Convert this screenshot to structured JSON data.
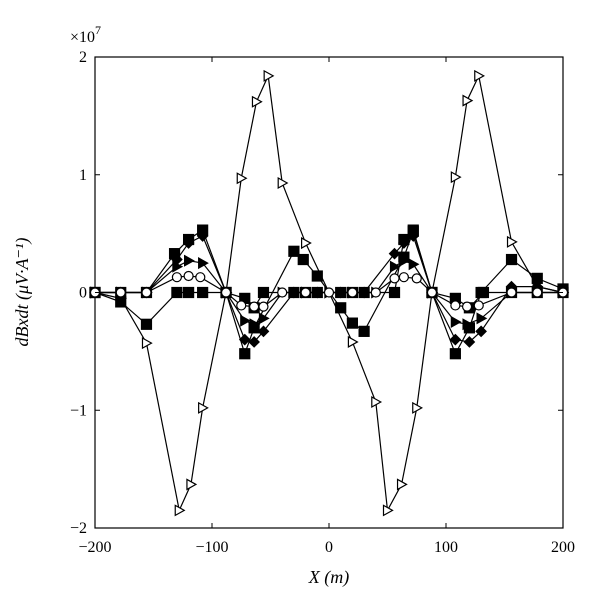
{
  "chart_data": {
    "type": "line",
    "xlabel": "X (m)",
    "ylabel": "dBxdt (μV·A⁻¹)",
    "exponent_label": "×10",
    "exponent_power": "7",
    "xlim": [
      -200,
      200
    ],
    "ylim": [
      -2,
      2
    ],
    "xticks": [
      -200,
      -100,
      0,
      100,
      200
    ],
    "xtick_labels": [
      "−200",
      "−100",
      "0",
      "100",
      "200"
    ],
    "yticks": [
      -2,
      -1,
      0,
      1,
      2
    ],
    "ytick_labels": [
      "−2",
      "−1",
      "0",
      "1",
      "2"
    ],
    "grid": false,
    "legend": "none",
    "units_note": "y values in units of 10^7",
    "series": [
      {
        "marker": "triangle-right-open",
        "x": [
          -200,
          -178,
          -156,
          -128,
          -118,
          -108,
          -88,
          -75,
          -62,
          -52,
          -40,
          -20,
          0,
          20,
          40,
          50,
          62,
          75,
          88,
          108,
          118,
          128,
          156,
          178,
          200
        ],
        "y": [
          0.0,
          -0.05,
          -0.43,
          -1.85,
          -1.63,
          -0.98,
          0.0,
          0.97,
          1.62,
          1.84,
          0.93,
          0.42,
          0.0,
          -0.42,
          -0.93,
          -1.85,
          -1.63,
          -0.98,
          0.0,
          0.98,
          1.63,
          1.84,
          0.43,
          0.05,
          0.0
        ]
      },
      {
        "marker": "square-filled",
        "x": [
          -200,
          -178,
          -156,
          -130,
          -120,
          -108,
          -88,
          -72,
          -64,
          -30,
          -22,
          -10,
          10,
          20,
          30,
          64,
          72,
          88,
          108,
          120,
          130,
          156,
          178,
          200
        ],
        "y": [
          0.0,
          -0.08,
          -0.27,
          0.0,
          0.0,
          0.0,
          0.0,
          -0.52,
          -0.3,
          0.35,
          0.28,
          0.14,
          -0.13,
          -0.26,
          -0.33,
          0.3,
          0.52,
          0.0,
          -0.52,
          -0.3,
          0.0,
          0.28,
          0.12,
          0.03
        ]
      },
      {
        "marker": "square-filled",
        "x": [
          -200,
          -178,
          -156,
          -132,
          -120,
          -108,
          -88,
          -72,
          -64,
          -56,
          -30,
          -20,
          -10,
          10,
          20,
          30,
          56,
          64,
          72,
          88,
          108,
          120,
          132,
          156,
          178,
          200
        ],
        "y": [
          0.0,
          0.0,
          0.0,
          0.33,
          0.45,
          0.53,
          0.0,
          -0.05,
          -0.13,
          0.0,
          0.0,
          0.0,
          0.0,
          0.0,
          0.0,
          0.0,
          0.0,
          0.45,
          0.53,
          0.0,
          -0.05,
          -0.13,
          0.0,
          0.0,
          0.0,
          0.0
        ]
      },
      {
        "marker": "diamond-filled",
        "x": [
          -200,
          -178,
          -156,
          -130,
          -120,
          -108,
          -88,
          -72,
          -64,
          -56,
          -30,
          -10,
          10,
          30,
          56,
          64,
          72,
          88,
          108,
          120,
          130,
          156,
          178,
          200
        ],
        "y": [
          0.0,
          0.0,
          0.0,
          0.28,
          0.42,
          0.48,
          0.0,
          -0.4,
          -0.42,
          -0.33,
          0.0,
          0.0,
          0.0,
          0.0,
          0.33,
          0.42,
          0.48,
          0.0,
          -0.4,
          -0.42,
          -0.33,
          0.05,
          0.05,
          0.0
        ]
      },
      {
        "marker": "triangle-right-filled",
        "x": [
          -200,
          -178,
          -156,
          -130,
          -120,
          -108,
          -88,
          -72,
          -64,
          -56,
          -40,
          -20,
          0,
          20,
          40,
          56,
          64,
          72,
          88,
          108,
          118,
          130,
          156,
          178,
          200
        ],
        "y": [
          0.0,
          0.0,
          0.0,
          0.22,
          0.27,
          0.25,
          0.0,
          -0.24,
          -0.27,
          -0.22,
          0.0,
          0.0,
          0.0,
          0.0,
          0.0,
          0.22,
          0.27,
          0.24,
          0.0,
          -0.25,
          -0.27,
          -0.22,
          0.0,
          0.0,
          0.0
        ]
      },
      {
        "marker": "circle-open",
        "x": [
          -200,
          -178,
          -156,
          -130,
          -120,
          -110,
          -88,
          -75,
          -64,
          -56,
          -40,
          -20,
          0,
          20,
          40,
          56,
          64,
          75,
          88,
          108,
          118,
          128,
          156,
          178,
          200
        ],
        "y": [
          0.0,
          0.0,
          0.0,
          0.13,
          0.14,
          0.13,
          0.0,
          -0.11,
          -0.12,
          -0.12,
          0.0,
          0.0,
          0.0,
          0.0,
          0.0,
          0.12,
          0.13,
          0.12,
          0.0,
          -0.11,
          -0.12,
          -0.11,
          0.0,
          0.0,
          0.0
        ]
      }
    ]
  }
}
